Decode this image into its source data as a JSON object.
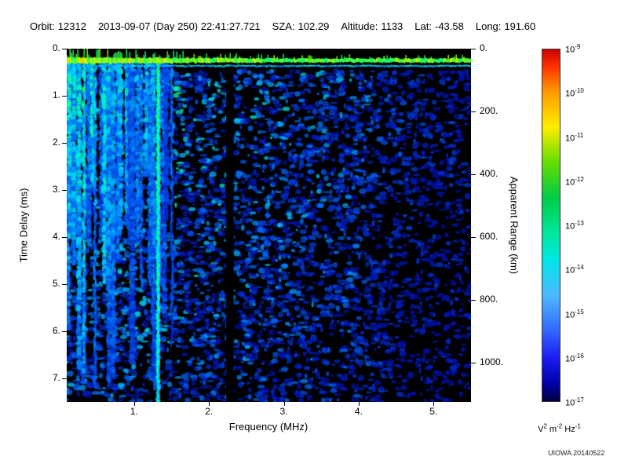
{
  "header": {
    "fields": [
      {
        "label": "Orbit:",
        "value": "12312"
      },
      {
        "label": "",
        "value": "2013-09-07 (Day 250) 22:41:27.721"
      },
      {
        "label": "SZA:",
        "value": "102.29"
      },
      {
        "label": "Altitude:",
        "value": "1133"
      },
      {
        "label": "Lat:",
        "value": "-43.58"
      },
      {
        "label": "Long:",
        "value": "191.60"
      }
    ]
  },
  "chart_data": {
    "type": "heatmap",
    "title": "",
    "xlabel": "Frequency (MHz)",
    "ylabel_left": "Time Delay (ms)",
    "ylabel_right": "Apparent Range (km)",
    "x_range_mhz": [
      0.1,
      5.5
    ],
    "x_ticks": [
      1,
      2,
      3,
      4,
      5
    ],
    "x_tick_labels": [
      "1.",
      "2.",
      "3.",
      "4.",
      "5."
    ],
    "y_range_ms": [
      0,
      7.5
    ],
    "y_ticks": [
      0,
      1,
      2,
      3,
      4,
      5,
      6,
      7
    ],
    "y_tick_labels": [
      "0.",
      "1.",
      "2.",
      "3.",
      "4.",
      "5.",
      "6.",
      "7."
    ],
    "right_ticks_km": [
      0,
      200,
      400,
      600,
      800,
      1000
    ],
    "right_tick_labels": [
      "0.",
      "200.",
      "400.",
      "600.",
      "800.",
      "1000."
    ],
    "range_per_ms_km": 150,
    "plot_background": "#000000",
    "grid": false,
    "colorbar": {
      "tick_exponents": [
        "-9",
        "-10",
        "-11",
        "-12",
        "-13",
        "-14",
        "-15",
        "-16",
        "-17"
      ],
      "unit_parts": [
        {
          "base": "V",
          "exp": "2"
        },
        {
          "base": "m",
          "exp": "-2"
        },
        {
          "base": "Hz",
          "exp": "-1"
        }
      ],
      "gradient": [
        {
          "pos": 0.0,
          "color": "#cc0000"
        },
        {
          "pos": 0.05,
          "color": "#ff3300"
        },
        {
          "pos": 0.12,
          "color": "#ff9900"
        },
        {
          "pos": 0.22,
          "color": "#ffee00"
        },
        {
          "pos": 0.32,
          "color": "#66dd00"
        },
        {
          "pos": 0.42,
          "color": "#00cc44"
        },
        {
          "pos": 0.52,
          "color": "#00e69a"
        },
        {
          "pos": 0.6,
          "color": "#00e6e6"
        },
        {
          "pos": 0.7,
          "color": "#4db8ff"
        },
        {
          "pos": 0.8,
          "color": "#3366ff"
        },
        {
          "pos": 0.88,
          "color": "#1a1aee"
        },
        {
          "pos": 0.95,
          "color": "#0000aa"
        },
        {
          "pos": 1.0,
          "color": "#000044"
        }
      ]
    },
    "features": [
      {
        "name": "surface-echo-band",
        "type": "horizontal-band",
        "time_delay_ms": 0.25,
        "freq_range_mhz": [
          0.1,
          5.5
        ],
        "color": "green-yellow",
        "note": "bright jagged echo band near zero delay across all frequencies"
      },
      {
        "name": "ionospheric-striations",
        "type": "vertical-stripes",
        "freq_range_mhz": [
          0.1,
          1.5
        ],
        "count": 26,
        "color": "cyan-green over blue",
        "note": "dense vertical striations at low frequency, variable depth"
      },
      {
        "name": "bright-stripe",
        "type": "vertical-stripe",
        "freq_mhz": 1.32,
        "color": "cyan",
        "note": "full-depth bright cyan column"
      },
      {
        "name": "data-gap",
        "type": "black-column",
        "freq_mhz": 2.28,
        "width_mhz": 0.1,
        "note": "black vertical gap below echo band"
      },
      {
        "name": "diffuse-noise",
        "type": "speckle",
        "freq_range_mhz": [
          0.1,
          5.5
        ],
        "color": "blue",
        "note": "speckled blue noise, density decreasing with frequency and time delay"
      }
    ]
  },
  "credit": "UIOWA 20140522"
}
